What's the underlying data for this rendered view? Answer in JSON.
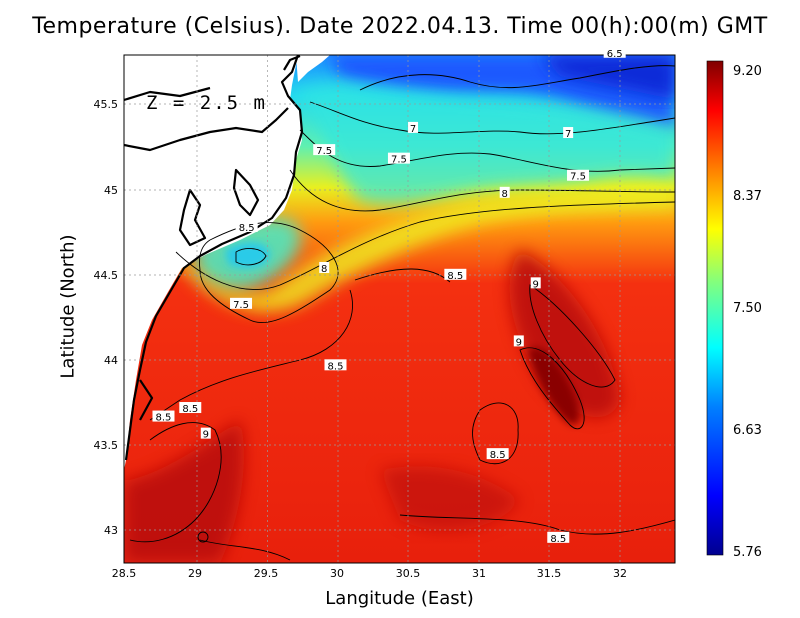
{
  "title": "Temperature (Celsius). Date 2022.04.13. Time 00(h):00(m) GMT",
  "xlabel": "Langitude (East)",
  "ylabel": "Latitude (North)",
  "depth_label": "Z = 2.5 m",
  "x_ticks": [
    "28.5",
    "29",
    "29.5",
    "30",
    "30.5",
    "31",
    "31.5",
    "32"
  ],
  "y_ticks": [
    "45.5",
    "45",
    "44.5",
    "44",
    "43.5",
    "43"
  ],
  "colorbar": {
    "labels": [
      "9.20",
      "8.37",
      "7.50",
      "6.63",
      "5.76"
    ],
    "min": 5.76,
    "max": 9.2,
    "colors": [
      "#00008f",
      "#0000ff",
      "#0080ff",
      "#00ffff",
      "#80ff80",
      "#ffff00",
      "#ff8000",
      "#ff0000",
      "#800000"
    ]
  },
  "contour_labels": [
    {
      "text": "6.5",
      "lon": 31.98,
      "lat": 45.8
    },
    {
      "text": "7",
      "lon": 30.55,
      "lat": 45.36
    },
    {
      "text": "7",
      "lon": 31.65,
      "lat": 45.33
    },
    {
      "text": "7.5",
      "lon": 29.92,
      "lat": 45.23
    },
    {
      "text": "7.5",
      "lon": 30.45,
      "lat": 45.18
    },
    {
      "text": "7.5",
      "lon": 31.72,
      "lat": 45.08
    },
    {
      "text": "8",
      "lon": 31.2,
      "lat": 44.98
    },
    {
      "text": "8.5",
      "lon": 29.37,
      "lat": 44.78
    },
    {
      "text": "8",
      "lon": 29.92,
      "lat": 44.54
    },
    {
      "text": "8.5",
      "lon": 30.85,
      "lat": 44.5
    },
    {
      "text": "9",
      "lon": 31.42,
      "lat": 44.45
    },
    {
      "text": "7.5",
      "lon": 29.33,
      "lat": 44.33
    },
    {
      "text": "9",
      "lon": 31.3,
      "lat": 44.11
    },
    {
      "text": "8.5",
      "lon": 30.0,
      "lat": 43.97
    },
    {
      "text": "8.5",
      "lon": 28.97,
      "lat": 43.72
    },
    {
      "text": "8.5",
      "lon": 28.78,
      "lat": 43.67
    },
    {
      "text": "9",
      "lon": 29.08,
      "lat": 43.57
    },
    {
      "text": "8.5",
      "lon": 31.15,
      "lat": 43.45
    },
    {
      "text": "8.5",
      "lon": 31.58,
      "lat": 42.96
    }
  ]
}
